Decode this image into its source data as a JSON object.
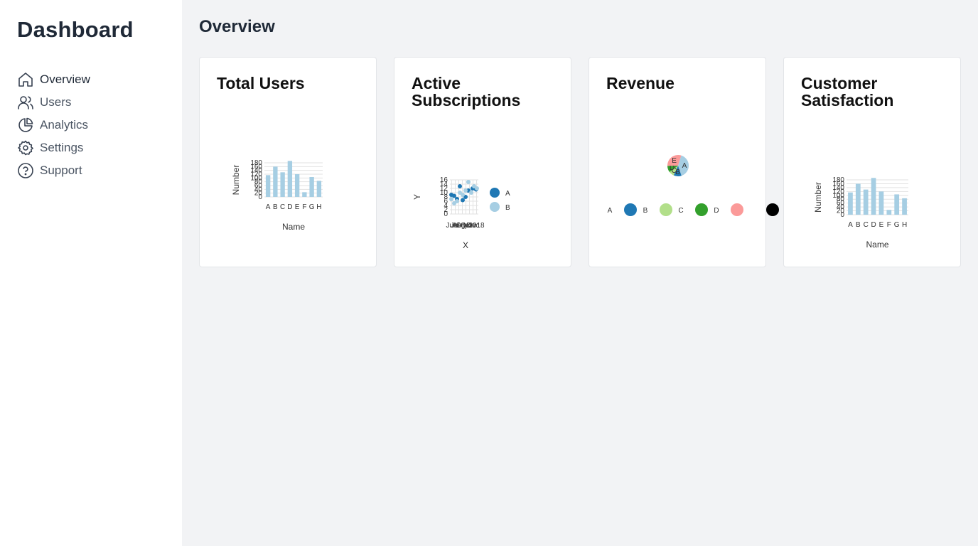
{
  "sidebar": {
    "brand": "Dashboard",
    "items": [
      {
        "label": "Overview",
        "icon": "home-icon"
      },
      {
        "label": "Users",
        "icon": "users-icon"
      },
      {
        "label": "Analytics",
        "icon": "pie-chart-icon"
      },
      {
        "label": "Settings",
        "icon": "gear-icon"
      },
      {
        "label": "Support",
        "icon": "help-circle-icon"
      }
    ]
  },
  "main": {
    "title": "Overview",
    "cards": [
      {
        "title": "Total Users"
      },
      {
        "title": "Active Subscriptions"
      },
      {
        "title": "Revenue"
      },
      {
        "title": "Customer Satisfaction"
      }
    ]
  },
  "colors": {
    "bar": "#a6cee3",
    "seriesA": "#1f78b4",
    "seriesB": "#a6cee3",
    "pieC": "#b2df8a",
    "pieD": "#33a02c",
    "pieE": "#fb9a99"
  },
  "chart_data": [
    {
      "type": "bar",
      "categories": [
        "A",
        "B",
        "C",
        "D",
        "E",
        "F",
        "G",
        "H"
      ],
      "values": [
        115,
        160,
        130,
        190,
        120,
        25,
        105,
        85
      ],
      "xlabel": "Name",
      "ylabel": "Number",
      "ylim": [
        0,
        180
      ],
      "yticks": [
        0,
        20,
        40,
        60,
        80,
        100,
        120,
        140,
        160,
        180
      ],
      "ytick_labels": [
        "0",
        "20",
        "40",
        "60",
        "80",
        "100",
        "120",
        "140",
        "160",
        "180"
      ],
      "grid": true
    },
    {
      "type": "scatter",
      "xlabel": "X",
      "ylabel": "Y",
      "ylim": [
        0,
        16
      ],
      "yticks": [
        0,
        2,
        4,
        6,
        8,
        10,
        12,
        14,
        16
      ],
      "ytick_labels": [
        "0",
        "2",
        "4",
        "6",
        "8",
        "10",
        "12",
        "14",
        "16"
      ],
      "xtick_labels": [
        "Jun",
        "Jul",
        "Aug",
        "Sep",
        "Oct",
        "Nov",
        "Dec",
        "2018"
      ],
      "grid": true,
      "legend_position": "right",
      "series": [
        {
          "name": "A",
          "points": [
            [
              0.05,
              9
            ],
            [
              0.15,
              8.5
            ],
            [
              0.25,
              7
            ],
            [
              0.35,
              13
            ],
            [
              0.45,
              6.5
            ],
            [
              0.55,
              8
            ],
            [
              0.65,
              11
            ],
            [
              0.8,
              12
            ],
            [
              0.92,
              11.5
            ]
          ]
        },
        {
          "name": "B",
          "points": [
            [
              0.05,
              7
            ],
            [
              0.15,
              5
            ],
            [
              0.25,
              6
            ],
            [
              0.35,
              10
            ],
            [
              0.45,
              9
            ],
            [
              0.55,
              11
            ],
            [
              0.65,
              15
            ],
            [
              0.75,
              10
            ],
            [
              0.85,
              13
            ],
            [
              0.95,
              12
            ]
          ]
        }
      ]
    },
    {
      "type": "pie",
      "labels": [
        "A",
        "B",
        "C",
        "D",
        "E"
      ],
      "values": [
        40,
        12,
        8,
        10,
        30
      ],
      "legend_position": "bottom",
      "legend": [
        "A",
        "B",
        "C",
        "D",
        ""
      ]
    },
    {
      "type": "bar",
      "categories": [
        "A",
        "B",
        "C",
        "D",
        "E",
        "F",
        "G",
        "H"
      ],
      "values": [
        115,
        160,
        130,
        190,
        120,
        25,
        105,
        85
      ],
      "xlabel": "Name",
      "ylabel": "Number",
      "ylim": [
        0,
        180
      ],
      "yticks": [
        0,
        20,
        40,
        60,
        80,
        100,
        120,
        140,
        160,
        180
      ],
      "ytick_labels": [
        "0",
        "20",
        "40",
        "60",
        "80",
        "100",
        "120",
        "140",
        "160",
        "180"
      ],
      "grid": true
    }
  ]
}
